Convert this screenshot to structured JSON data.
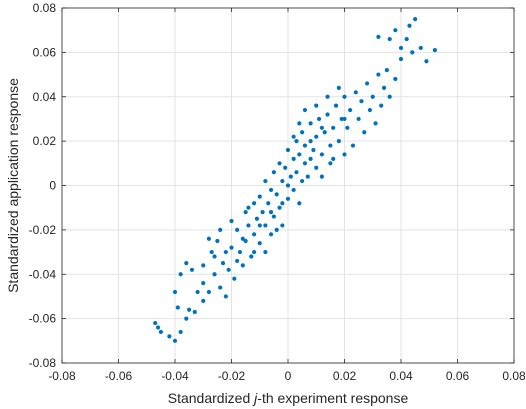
{
  "chart_data": {
    "type": "scatter",
    "title": "",
    "xlabel_parts": [
      "Standardized ",
      "j",
      "-th experiment response"
    ],
    "ylabel": "Standardized application response",
    "xlim": [
      -0.08,
      0.08
    ],
    "ylim": [
      -0.08,
      0.08
    ],
    "xticks": [
      -0.08,
      -0.06,
      -0.04,
      -0.02,
      0,
      0.02,
      0.04,
      0.06,
      0.08
    ],
    "yticks": [
      -0.08,
      -0.06,
      -0.04,
      -0.02,
      0,
      0.02,
      0.04,
      0.06,
      0.08
    ],
    "xtick_labels": [
      "-0.08",
      "-0.06",
      "-0.04",
      "-0.02",
      "0",
      "0.02",
      "0.04",
      "0.06",
      "0.08"
    ],
    "ytick_labels": [
      "-0.08",
      "-0.06",
      "-0.04",
      "-0.02",
      "0",
      "0.02",
      "0.04",
      "0.06",
      "0.08"
    ],
    "grid": true,
    "marker_color": "#0072BD",
    "points": [
      [
        -0.047,
        -0.062
      ],
      [
        -0.045,
        -0.066
      ],
      [
        -0.042,
        -0.068
      ],
      [
        -0.04,
        -0.07
      ],
      [
        -0.046,
        -0.064
      ],
      [
        -0.038,
        -0.066
      ],
      [
        -0.035,
        -0.056
      ],
      [
        -0.039,
        -0.055
      ],
      [
        -0.036,
        -0.06
      ],
      [
        -0.033,
        -0.057
      ],
      [
        -0.04,
        -0.048
      ],
      [
        -0.038,
        -0.04
      ],
      [
        -0.036,
        -0.035
      ],
      [
        -0.034,
        -0.038
      ],
      [
        -0.032,
        -0.048
      ],
      [
        -0.03,
        -0.052
      ],
      [
        -0.03,
        -0.044
      ],
      [
        -0.028,
        -0.048
      ],
      [
        -0.027,
        -0.03
      ],
      [
        -0.026,
        -0.04
      ],
      [
        -0.024,
        -0.046
      ],
      [
        -0.022,
        -0.05
      ],
      [
        -0.025,
        -0.025
      ],
      [
        -0.023,
        -0.035
      ],
      [
        -0.021,
        -0.038
      ],
      [
        -0.02,
        -0.028
      ],
      [
        -0.019,
        -0.042
      ],
      [
        -0.018,
        -0.02
      ],
      [
        -0.017,
        -0.03
      ],
      [
        -0.016,
        -0.036
      ],
      [
        -0.015,
        -0.012
      ],
      [
        -0.015,
        -0.025
      ],
      [
        -0.014,
        -0.018
      ],
      [
        -0.013,
        -0.032
      ],
      [
        -0.012,
        -0.008
      ],
      [
        -0.012,
        -0.022
      ],
      [
        -0.011,
        -0.015
      ],
      [
        -0.01,
        -0.005
      ],
      [
        -0.01,
        -0.026
      ],
      [
        -0.009,
        -0.012
      ],
      [
        -0.008,
        -0.018
      ],
      [
        -0.008,
        0.002
      ],
      [
        -0.007,
        -0.008
      ],
      [
        -0.006,
        -0.022
      ],
      [
        -0.006,
        -0.002
      ],
      [
        -0.005,
        0.006
      ],
      [
        -0.005,
        -0.014
      ],
      [
        -0.004,
        -0.004
      ],
      [
        -0.003,
        0.01
      ],
      [
        -0.003,
        -0.01
      ],
      [
        -0.002,
        0.002
      ],
      [
        -0.002,
        -0.018
      ],
      [
        -0.001,
        0.008
      ],
      [
        0.0,
        0.0
      ],
      [
        0.0,
        -0.006
      ],
      [
        0.0,
        0.016
      ],
      [
        0.001,
        0.004
      ],
      [
        0.002,
        -0.002
      ],
      [
        0.002,
        0.012
      ],
      [
        0.003,
        0.02
      ],
      [
        0.003,
        0.006
      ],
      [
        0.004,
        -0.008
      ],
      [
        0.004,
        0.014
      ],
      [
        0.005,
        0.002
      ],
      [
        0.005,
        0.024
      ],
      [
        0.006,
        0.01
      ],
      [
        0.006,
        0.018
      ],
      [
        0.007,
        0.004
      ],
      [
        0.008,
        0.012
      ],
      [
        0.008,
        0.028
      ],
      [
        0.009,
        0.016
      ],
      [
        0.01,
        0.008
      ],
      [
        0.01,
        0.022
      ],
      [
        0.011,
        0.03
      ],
      [
        0.012,
        0.014
      ],
      [
        0.012,
        0.004
      ],
      [
        0.013,
        0.024
      ],
      [
        0.014,
        0.032
      ],
      [
        0.015,
        0.018
      ],
      [
        0.015,
        0.01
      ],
      [
        0.016,
        0.026
      ],
      [
        0.017,
        0.036
      ],
      [
        0.018,
        0.02
      ],
      [
        0.019,
        0.03
      ],
      [
        0.02,
        0.014
      ],
      [
        0.02,
        0.04
      ],
      [
        0.021,
        0.026
      ],
      [
        0.022,
        0.034
      ],
      [
        0.023,
        0.018
      ],
      [
        0.024,
        0.042
      ],
      [
        0.025,
        0.03
      ],
      [
        0.026,
        0.038
      ],
      [
        0.027,
        0.024
      ],
      [
        0.028,
        0.046
      ],
      [
        0.029,
        0.034
      ],
      [
        0.03,
        0.04
      ],
      [
        0.031,
        0.028
      ],
      [
        0.032,
        0.05
      ],
      [
        0.033,
        0.036
      ],
      [
        0.034,
        0.044
      ],
      [
        0.035,
        0.052
      ],
      [
        0.036,
        0.04
      ],
      [
        0.038,
        0.048
      ],
      [
        0.04,
        0.057
      ],
      [
        0.042,
        0.066
      ],
      [
        0.043,
        0.072
      ],
      [
        0.045,
        0.075
      ],
      [
        0.047,
        0.062
      ],
      [
        0.049,
        0.056
      ],
      [
        0.052,
        0.061
      ],
      [
        0.038,
        0.07
      ],
      [
        0.036,
        0.066
      ],
      [
        0.032,
        0.067
      ],
      [
        0.04,
        0.062
      ],
      [
        0.044,
        0.06
      ],
      [
        -0.03,
        -0.036
      ],
      [
        -0.028,
        -0.024
      ],
      [
        -0.026,
        -0.032
      ],
      [
        -0.024,
        -0.02
      ],
      [
        -0.022,
        -0.03
      ],
      [
        -0.02,
        -0.016
      ],
      [
        -0.018,
        -0.034
      ],
      [
        -0.016,
        -0.024
      ],
      [
        -0.014,
        -0.01
      ],
      [
        -0.012,
        -0.03
      ],
      [
        -0.01,
        -0.018
      ],
      [
        -0.008,
        -0.03
      ],
      [
        -0.006,
        -0.012
      ],
      [
        -0.004,
        -0.02
      ],
      [
        -0.002,
        -0.008
      ],
      [
        0.002,
        0.022
      ],
      [
        0.004,
        0.028
      ],
      [
        0.006,
        0.034
      ],
      [
        0.008,
        0.02
      ],
      [
        0.01,
        0.036
      ],
      [
        0.012,
        0.026
      ],
      [
        0.014,
        0.04
      ],
      [
        0.016,
        0.012
      ],
      [
        0.018,
        0.044
      ],
      [
        0.02,
        0.03
      ]
    ]
  }
}
